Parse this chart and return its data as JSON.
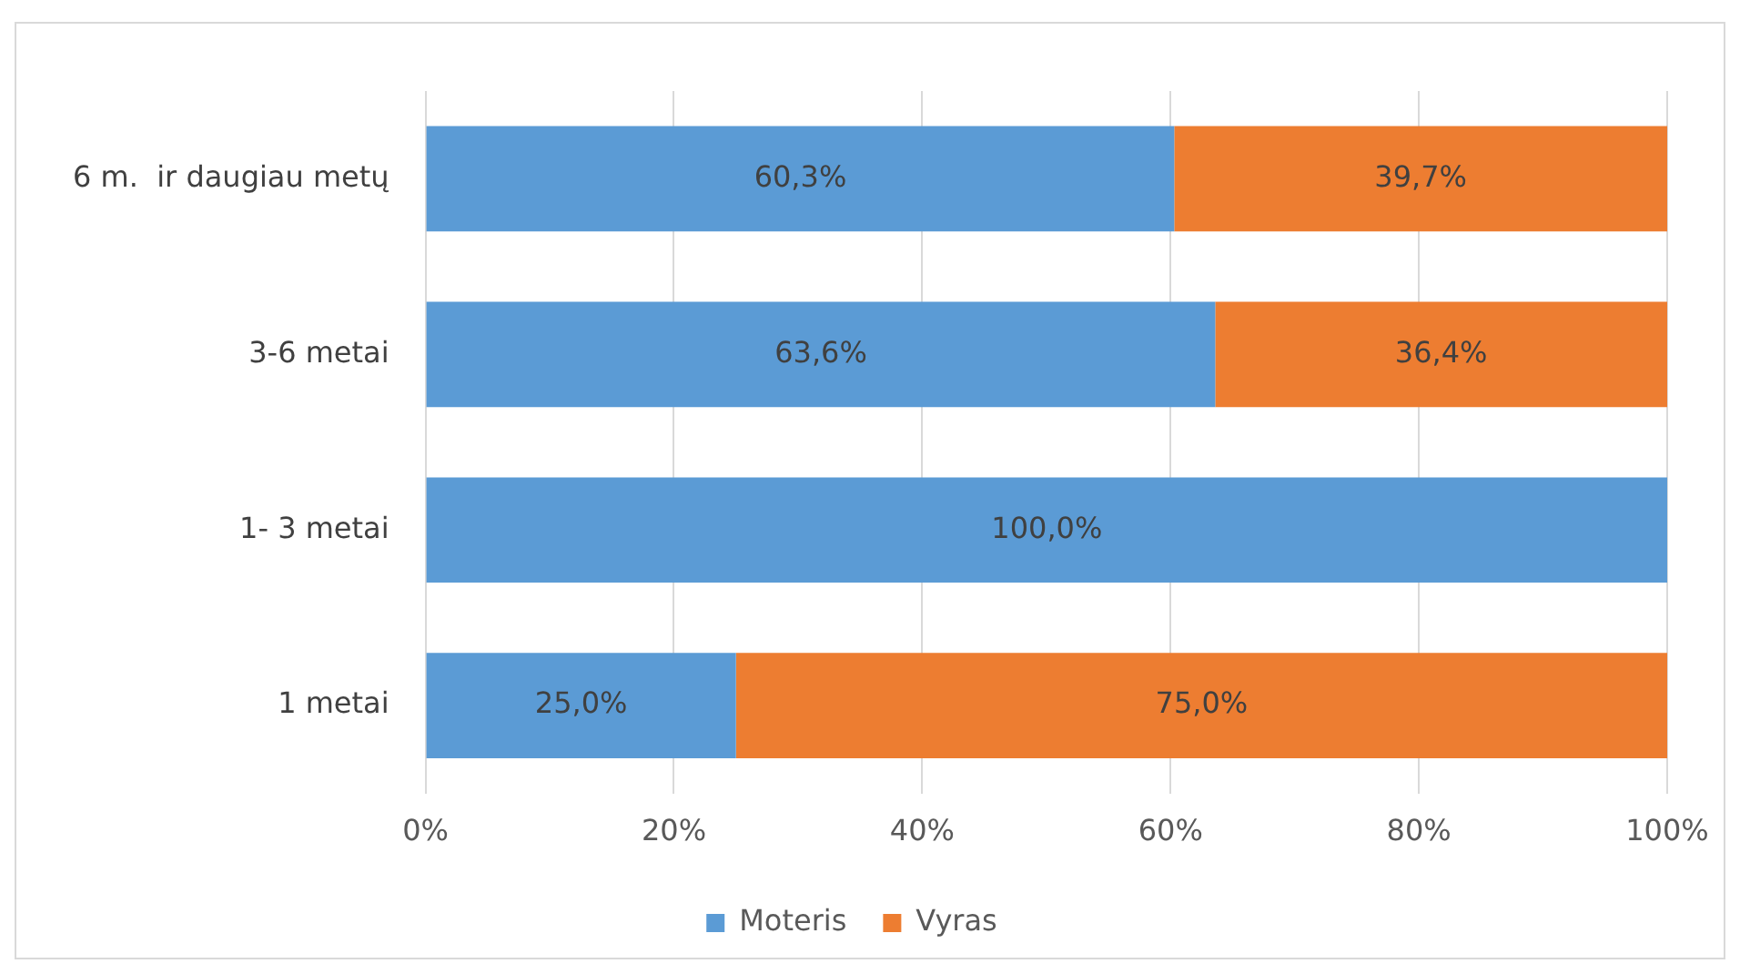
{
  "chart_data": {
    "type": "bar",
    "orientation": "horizontal",
    "stacked": true,
    "categories": [
      "6 m.  ir daugiau metų",
      "3-6 metai",
      "1- 3 metai",
      "1 metai"
    ],
    "series": [
      {
        "name": "Moteris",
        "color": "#5b9bd5",
        "values": [
          60.3,
          63.6,
          100,
          25
        ],
        "value_labels": [
          "60,3%",
          "63,6%",
          "100,0%",
          "25,0%"
        ]
      },
      {
        "name": "Vyras",
        "color": "#ed7d31",
        "values": [
          39.7,
          36.4,
          null,
          75
        ],
        "value_labels": [
          "39,7%",
          "36,4%",
          null,
          "75,0%"
        ]
      }
    ],
    "xlim": [
      0,
      100
    ],
    "xticks": [
      {
        "value": 0,
        "label": "0%"
      },
      {
        "value": 20,
        "label": "20%"
      },
      {
        "value": 40,
        "label": "40%"
      },
      {
        "value": 60,
        "label": "60%"
      },
      {
        "value": 80,
        "label": "80%"
      },
      {
        "value": 100,
        "label": "100%"
      }
    ],
    "grid": "x",
    "legend": "bottom"
  }
}
